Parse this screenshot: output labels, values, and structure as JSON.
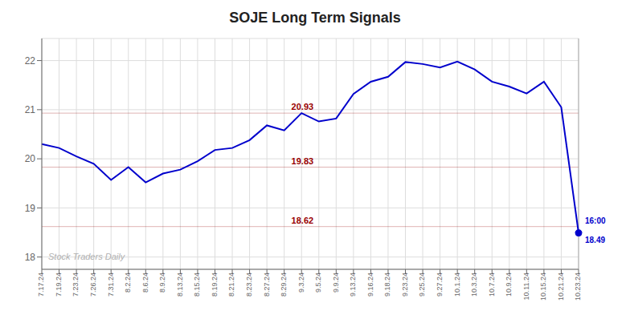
{
  "chart_data": {
    "type": "line",
    "title": "SOJE Long Term Signals",
    "categories": [
      "7.17.24",
      "7.19.24",
      "7.23.24",
      "7.26.24",
      "7.31.24",
      "8.2.24",
      "8.6.24",
      "8.9.24",
      "8.13.24",
      "8.15.24",
      "8.19.24",
      "8.21.24",
      "8.23.24",
      "8.27.24",
      "8.29.24",
      "9.3.24",
      "9.5.24",
      "9.9.24",
      "9.13.24",
      "9.16.24",
      "9.18.24",
      "9.23.24",
      "9.25.24",
      "9.27.24",
      "10.1.24",
      "10.3.24",
      "10.7.24",
      "10.9.24",
      "10.11.24",
      "10.15.24",
      "10.21.24",
      "10.23.24"
    ],
    "values": [
      20.3,
      20.22,
      20.05,
      19.9,
      19.57,
      19.83,
      19.52,
      19.7,
      19.78,
      19.95,
      20.18,
      20.22,
      20.38,
      20.68,
      20.58,
      20.93,
      20.76,
      20.82,
      21.32,
      21.57,
      21.67,
      21.97,
      21.93,
      21.86,
      21.98,
      21.82,
      21.57,
      21.47,
      21.33,
      21.57,
      21.05,
      18.49
    ],
    "color": "#0000cc",
    "ylim": [
      17.75,
      22.45
    ],
    "yticks": [
      18,
      19,
      20,
      21,
      22
    ],
    "grid": true,
    "hlines": [
      {
        "value": 20.93,
        "label": "20.93",
        "color": "#990000"
      },
      {
        "value": 19.83,
        "label": "19.83",
        "color": "#990000"
      },
      {
        "value": 18.62,
        "label": "18.62",
        "color": "#990000"
      }
    ],
    "annotations": [
      "16:00",
      "18.49",
      "Stock Traders Daily"
    ]
  }
}
